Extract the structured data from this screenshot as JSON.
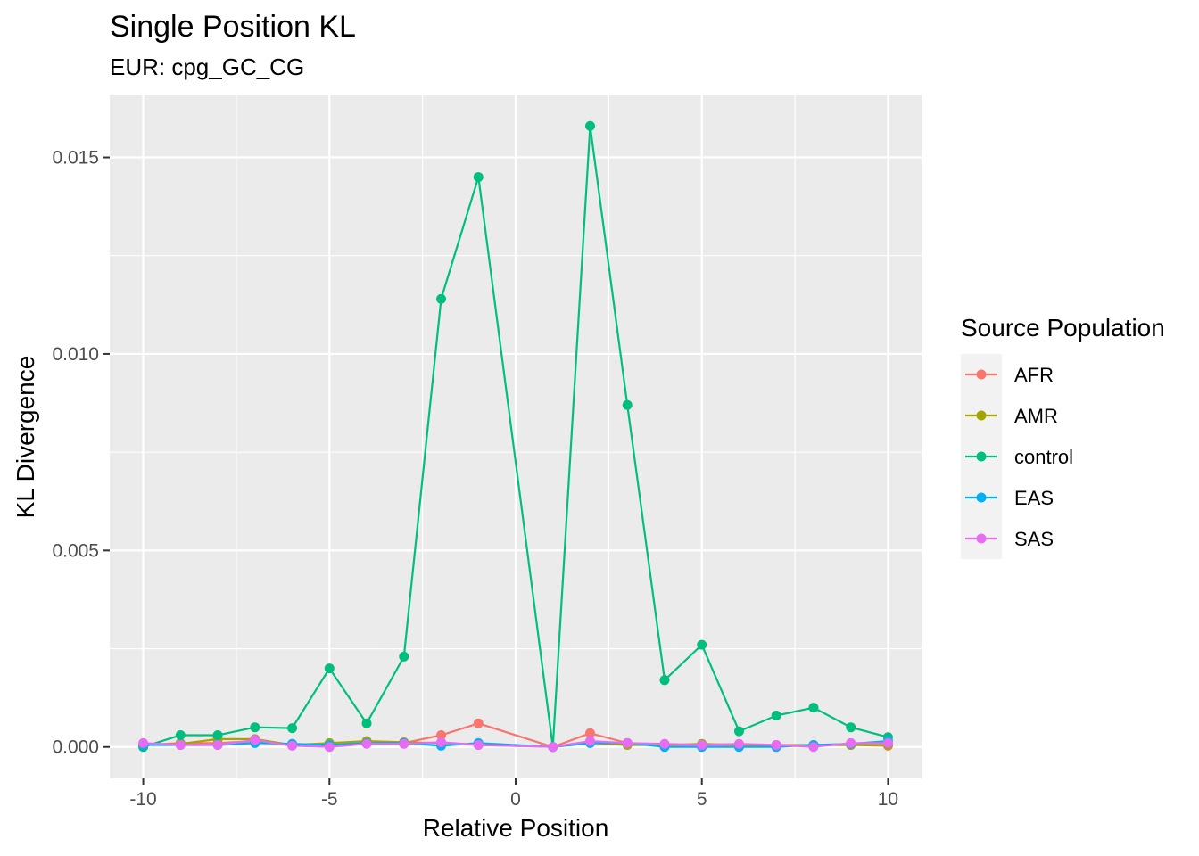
{
  "chart_data": {
    "type": "line",
    "title": "Single Position KL",
    "subtitle": "EUR: cpg_GC_CG",
    "xlabel": "Relative Position",
    "ylabel": "KL Divergence",
    "xlim": [
      -10.9,
      10.9
    ],
    "ylim": [
      -0.0008,
      0.0166
    ],
    "x_ticks": [
      -10,
      -5,
      0,
      5,
      10
    ],
    "x_tick_labels": [
      "-10",
      "-5",
      "0",
      "5",
      "10"
    ],
    "y_ticks": [
      0.0,
      0.005,
      0.01,
      0.015
    ],
    "y_tick_labels": [
      "0.000",
      "0.005",
      "0.010",
      "0.015"
    ],
    "grid": true,
    "legend": {
      "title": "Source Population",
      "position": "right"
    },
    "x": [
      -10,
      -9,
      -8,
      -7,
      -6,
      -5,
      -4,
      -3,
      -2,
      -1,
      1,
      2,
      3,
      4,
      5,
      6,
      7,
      8,
      9,
      10
    ],
    "series": [
      {
        "name": "AFR",
        "color": "#F8766D",
        "values": [
          5e-05,
          0.0001,
          0.0001,
          0.00015,
          5e-05,
          5e-05,
          0.0001,
          0.0001,
          0.0003,
          0.0006,
          0.0,
          0.00035,
          0.0001,
          5e-05,
          5e-05,
          5e-05,
          5e-05,
          5e-05,
          5e-05,
          3e-05
        ]
      },
      {
        "name": "AMR",
        "color": "#A3A500",
        "values": [
          5e-05,
          8e-05,
          0.0002,
          0.0002,
          5e-05,
          0.0001,
          0.00015,
          0.00012,
          0.0001,
          5e-05,
          0.0,
          0.0001,
          5e-05,
          5e-05,
          8e-05,
          5e-05,
          3e-05,
          5e-05,
          5e-05,
          5e-05
        ]
      },
      {
        "name": "control",
        "color": "#00BF7D",
        "values": [
          0.0,
          0.0003,
          0.0003,
          0.0005,
          0.00048,
          0.002,
          0.0006,
          0.0023,
          0.0114,
          0.0145,
          0.0,
          0.0158,
          0.0087,
          0.0017,
          0.0026,
          0.0004,
          0.0008,
          0.001,
          0.0005,
          0.00025
        ]
      },
      {
        "name": "EAS",
        "color": "#00B0F6",
        "values": [
          5e-05,
          5e-05,
          5e-05,
          0.0001,
          8e-05,
          5e-05,
          0.0001,
          0.0001,
          3e-05,
          0.0001,
          0.0,
          0.0001,
          0.0001,
          0.0,
          0.0,
          0.0,
          0.0,
          5e-05,
          8e-05,
          0.00015
        ]
      },
      {
        "name": "SAS",
        "color": "#E76BF3",
        "values": [
          0.0001,
          5e-05,
          5e-05,
          0.00018,
          3e-05,
          0.0,
          8e-05,
          8e-05,
          0.00012,
          5e-05,
          0.0,
          0.00015,
          0.0001,
          8e-05,
          5e-05,
          8e-05,
          5e-05,
          0.0,
          0.0001,
          0.0001
        ]
      }
    ]
  }
}
